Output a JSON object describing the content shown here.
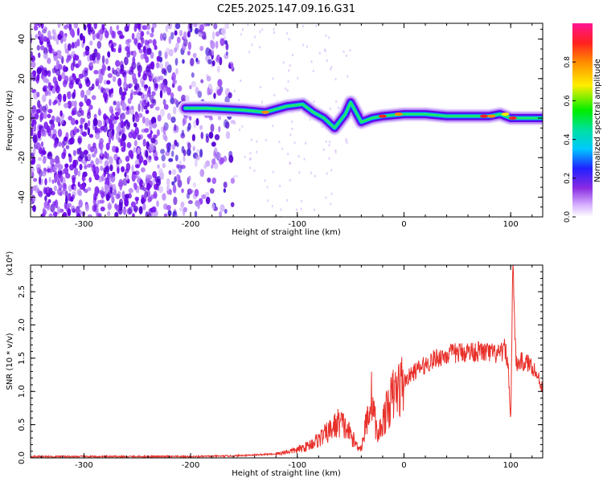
{
  "title": "C2E5.2025.147.09.16.G31",
  "colors": {
    "axis": "#000000",
    "snr_line": "#e8302a",
    "spectrogram_bg": "#ffffff"
  },
  "chart_data": [
    {
      "type": "heatmap",
      "name": "spectrogram",
      "xlabel": "Height of straight line (km)",
      "ylabel": "Frequency (Hz)",
      "xlim": [
        -350,
        130
      ],
      "ylim": [
        -50,
        48
      ],
      "xticks": [
        -300,
        -200,
        -100,
        0,
        100
      ],
      "xtick_labels": [
        "-300",
        "-200",
        "-100",
        "0",
        "100"
      ],
      "yticks": [
        -40,
        -20,
        0,
        20,
        40
      ],
      "ytick_labels": [
        "-40",
        "-20",
        "0",
        "20",
        "40"
      ],
      "description_of_content": {
        "noise_region_x": [
          -350,
          -160
        ],
        "signal_track": [
          [
            -205,
            5
          ],
          [
            -185,
            5
          ],
          [
            -150,
            4
          ],
          [
            -130,
            3
          ],
          [
            -110,
            6
          ],
          [
            -95,
            7
          ],
          [
            -85,
            3
          ],
          [
            -75,
            0
          ],
          [
            -65,
            -5
          ],
          [
            -55,
            2
          ],
          [
            -50,
            8
          ],
          [
            -45,
            3
          ],
          [
            -40,
            -2
          ],
          [
            -30,
            0
          ],
          [
            -20,
            1
          ],
          [
            0,
            2
          ],
          [
            20,
            2
          ],
          [
            40,
            1
          ],
          [
            60,
            1
          ],
          [
            80,
            1
          ],
          [
            90,
            2
          ],
          [
            100,
            0
          ],
          [
            130,
            0
          ]
        ]
      },
      "colorbar": {
        "label": "Normalized spectral amplitude",
        "range": [
          0,
          1
        ],
        "ticks": [
          0.0,
          0.2,
          0.4,
          0.6,
          0.8
        ],
        "tick_labels": [
          "0.0",
          "0.2",
          "0.4",
          "0.6",
          "0.8"
        ]
      }
    },
    {
      "type": "line",
      "name": "snr",
      "xlabel": "Height of straight line (km)",
      "ylabel": "SNR (10 * v/v)",
      "y_multiplier_label": "(x10⁴)",
      "xlim": [
        -350,
        130
      ],
      "ylim": [
        0,
        2.9
      ],
      "xticks": [
        -300,
        -200,
        -100,
        0,
        100
      ],
      "xtick_labels": [
        "-300",
        "-200",
        "-100",
        "0",
        "100"
      ],
      "yticks": [
        0.0,
        0.5,
        1.0,
        1.5,
        2.0,
        2.5
      ],
      "ytick_labels": [
        "0.0",
        "0.5",
        "1.0",
        "1.5",
        "2.0",
        "2.5"
      ],
      "series": [
        {
          "x": [
            -350,
            -300,
            -250,
            -200,
            -160,
            -120,
            -100,
            -90,
            -80,
            -70,
            -60,
            -50,
            -45,
            -40,
            -35,
            -30,
            -25,
            -20,
            -15,
            -10,
            -5,
            0,
            10,
            20,
            30,
            40,
            50,
            60,
            70,
            80,
            90,
            95,
            98,
            100,
            102,
            105,
            110,
            120,
            130
          ],
          "y": [
            0.02,
            0.02,
            0.02,
            0.02,
            0.03,
            0.06,
            0.12,
            0.18,
            0.28,
            0.4,
            0.55,
            0.35,
            0.2,
            0.15,
            0.55,
            0.95,
            0.3,
            0.55,
            0.75,
            0.95,
            1.05,
            1.15,
            1.3,
            1.4,
            1.5,
            1.55,
            1.58,
            1.6,
            1.6,
            1.58,
            1.55,
            1.65,
            1.3,
            0.5,
            2.9,
            1.4,
            1.45,
            1.4,
            1.05
          ]
        }
      ]
    }
  ]
}
